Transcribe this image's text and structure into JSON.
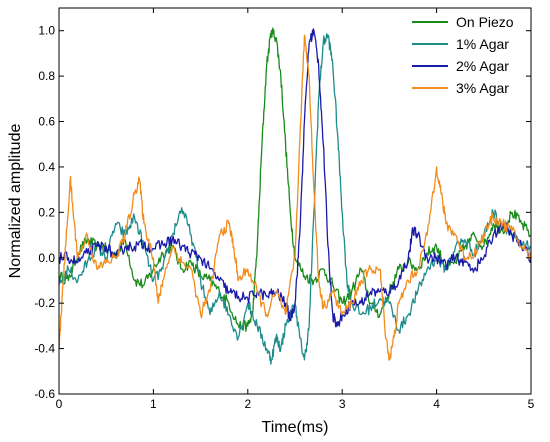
{
  "chart_data": {
    "type": "line",
    "xlabel": "Time(ms)",
    "ylabel": "Normalized amplitude",
    "xlim": [
      0,
      5
    ],
    "ylim": [
      -0.6,
      1.1
    ],
    "xticks": [
      "0",
      "1",
      "2",
      "3",
      "4",
      "5"
    ],
    "yticks": [
      "-0.6",
      "-0.4",
      "-0.2",
      "0.0",
      "0.2",
      "0.4",
      "0.6",
      "0.8",
      "1.0"
    ],
    "grid": false,
    "legend": "top-right",
    "series": [
      {
        "name": "On Piezo",
        "color": "#1a8a1a",
        "points": [
          [
            0,
            -0.08
          ],
          [
            0.1,
            -0.1
          ],
          [
            0.2,
            0.02
          ],
          [
            0.3,
            0.08
          ],
          [
            0.4,
            0.05
          ],
          [
            0.5,
            0.04
          ],
          [
            0.6,
            0.01
          ],
          [
            0.7,
            0.08
          ],
          [
            0.8,
            -0.1
          ],
          [
            0.9,
            -0.12
          ],
          [
            1.0,
            -0.05
          ],
          [
            1.1,
            0.02
          ],
          [
            1.2,
            0.05
          ],
          [
            1.3,
            -0.05
          ],
          [
            1.4,
            -0.02
          ],
          [
            1.5,
            -0.08
          ],
          [
            1.6,
            -0.1
          ],
          [
            1.7,
            -0.15
          ],
          [
            1.8,
            -0.2
          ],
          [
            1.9,
            -0.3
          ],
          [
            2.0,
            -0.3
          ],
          [
            2.05,
            -0.25
          ],
          [
            2.1,
            0.05
          ],
          [
            2.15,
            0.5
          ],
          [
            2.2,
            0.85
          ],
          [
            2.25,
            1.0
          ],
          [
            2.3,
            0.97
          ],
          [
            2.35,
            0.8
          ],
          [
            2.4,
            0.5
          ],
          [
            2.45,
            0.2
          ],
          [
            2.5,
            0.0
          ],
          [
            2.6,
            -0.08
          ],
          [
            2.7,
            -0.1
          ],
          [
            2.8,
            -0.05
          ],
          [
            2.9,
            -0.12
          ],
          [
            3.0,
            -0.2
          ],
          [
            3.1,
            -0.15
          ],
          [
            3.2,
            -0.05
          ],
          [
            3.3,
            -0.2
          ],
          [
            3.4,
            -0.25
          ],
          [
            3.5,
            -0.15
          ],
          [
            3.6,
            -0.05
          ],
          [
            3.7,
            -0.02
          ],
          [
            3.8,
            -0.05
          ],
          [
            3.9,
            0.02
          ],
          [
            4.0,
            0.05
          ],
          [
            4.1,
            -0.05
          ],
          [
            4.2,
            -0.02
          ],
          [
            4.3,
            0.05
          ],
          [
            4.4,
            0.1
          ],
          [
            4.5,
            0.05
          ],
          [
            4.6,
            0.15
          ],
          [
            4.7,
            0.12
          ],
          [
            4.8,
            0.2
          ],
          [
            4.9,
            0.15
          ],
          [
            5.0,
            0.1
          ]
        ]
      },
      {
        "name": "1% Agar",
        "color": "#1f8c8c",
        "points": [
          [
            0,
            -0.12
          ],
          [
            0.1,
            -0.05
          ],
          [
            0.2,
            -0.1
          ],
          [
            0.3,
            -0.02
          ],
          [
            0.4,
            0.05
          ],
          [
            0.5,
            0.0
          ],
          [
            0.6,
            0.15
          ],
          [
            0.7,
            0.1
          ],
          [
            0.8,
            0.18
          ],
          [
            0.9,
            0.05
          ],
          [
            1.0,
            -0.1
          ],
          [
            1.1,
            -0.05
          ],
          [
            1.2,
            0.1
          ],
          [
            1.3,
            0.22
          ],
          [
            1.4,
            0.1
          ],
          [
            1.5,
            -0.1
          ],
          [
            1.6,
            -0.25
          ],
          [
            1.7,
            -0.15
          ],
          [
            1.8,
            -0.25
          ],
          [
            1.9,
            -0.35
          ],
          [
            2.0,
            -0.2
          ],
          [
            2.1,
            -0.3
          ],
          [
            2.2,
            -0.4
          ],
          [
            2.25,
            -0.45
          ],
          [
            2.3,
            -0.35
          ],
          [
            2.35,
            -0.4
          ],
          [
            2.4,
            -0.3
          ],
          [
            2.5,
            -0.2
          ],
          [
            2.55,
            -0.35
          ],
          [
            2.6,
            -0.45
          ],
          [
            2.65,
            -0.3
          ],
          [
            2.7,
            0.2
          ],
          [
            2.75,
            0.7
          ],
          [
            2.8,
            0.95
          ],
          [
            2.85,
            0.98
          ],
          [
            2.9,
            0.85
          ],
          [
            2.95,
            0.55
          ],
          [
            3.0,
            0.2
          ],
          [
            3.05,
            -0.1
          ],
          [
            3.1,
            -0.2
          ],
          [
            3.2,
            -0.25
          ],
          [
            3.3,
            -0.22
          ],
          [
            3.4,
            -0.18
          ],
          [
            3.5,
            -0.2
          ],
          [
            3.6,
            -0.32
          ],
          [
            3.7,
            -0.25
          ],
          [
            3.8,
            -0.15
          ],
          [
            3.9,
            -0.05
          ],
          [
            4.0,
            0.0
          ],
          [
            4.1,
            -0.05
          ],
          [
            4.2,
            0.05
          ],
          [
            4.3,
            0.08
          ],
          [
            4.4,
            0.02
          ],
          [
            4.5,
            0.1
          ],
          [
            4.6,
            0.2
          ],
          [
            4.7,
            0.15
          ],
          [
            4.8,
            0.1
          ],
          [
            4.9,
            0.05
          ],
          [
            5.0,
            0.05
          ]
        ]
      },
      {
        "name": "2% Agar",
        "color": "#1a1aaa",
        "points": [
          [
            0,
            0.0
          ],
          [
            0.1,
            0.0
          ],
          [
            0.2,
            -0.02
          ],
          [
            0.3,
            0.02
          ],
          [
            0.4,
            0.05
          ],
          [
            0.5,
            0.05
          ],
          [
            0.6,
            0.0
          ],
          [
            0.7,
            0.05
          ],
          [
            0.8,
            0.05
          ],
          [
            0.9,
            0.06
          ],
          [
            1.0,
            0.04
          ],
          [
            1.1,
            0.06
          ],
          [
            1.2,
            0.08
          ],
          [
            1.3,
            0.05
          ],
          [
            1.4,
            0.02
          ],
          [
            1.5,
            0.0
          ],
          [
            1.6,
            -0.05
          ],
          [
            1.7,
            -0.1
          ],
          [
            1.8,
            -0.15
          ],
          [
            1.9,
            -0.17
          ],
          [
            2.0,
            -0.18
          ],
          [
            2.1,
            -0.15
          ],
          [
            2.2,
            -0.17
          ],
          [
            2.3,
            -0.15
          ],
          [
            2.4,
            -0.2
          ],
          [
            2.45,
            -0.27
          ],
          [
            2.5,
            -0.2
          ],
          [
            2.55,
            0.1
          ],
          [
            2.6,
            0.6
          ],
          [
            2.65,
            0.95
          ],
          [
            2.7,
            1.0
          ],
          [
            2.75,
            0.85
          ],
          [
            2.8,
            0.5
          ],
          [
            2.85,
            0.05
          ],
          [
            2.9,
            -0.25
          ],
          [
            2.95,
            -0.3
          ],
          [
            3.0,
            -0.25
          ],
          [
            3.1,
            -0.2
          ],
          [
            3.2,
            -0.2
          ],
          [
            3.3,
            -0.15
          ],
          [
            3.4,
            -0.15
          ],
          [
            3.5,
            -0.15
          ],
          [
            3.6,
            -0.1
          ],
          [
            3.7,
            0.0
          ],
          [
            3.75,
            0.12
          ],
          [
            3.8,
            0.1
          ],
          [
            3.9,
            0.0
          ],
          [
            4.0,
            0.0
          ],
          [
            4.1,
            -0.03
          ],
          [
            4.2,
            0.0
          ],
          [
            4.3,
            -0.02
          ],
          [
            4.4,
            -0.05
          ],
          [
            4.5,
            0.0
          ],
          [
            4.6,
            0.1
          ],
          [
            4.7,
            0.15
          ],
          [
            4.8,
            0.1
          ],
          [
            4.9,
            0.05
          ],
          [
            5.0,
            0.0
          ]
        ]
      },
      {
        "name": "3% Agar",
        "color": "#f28c1c",
        "points": [
          [
            0,
            -0.4
          ],
          [
            0.03,
            -0.2
          ],
          [
            0.07,
            0.05
          ],
          [
            0.12,
            0.35
          ],
          [
            0.15,
            0.2
          ],
          [
            0.2,
            0.0
          ],
          [
            0.3,
            0.1
          ],
          [
            0.4,
            -0.05
          ],
          [
            0.5,
            -0.02
          ],
          [
            0.6,
            0.0
          ],
          [
            0.7,
            0.1
          ],
          [
            0.8,
            0.28
          ],
          [
            0.85,
            0.35
          ],
          [
            0.9,
            0.15
          ],
          [
            1.0,
            0.0
          ],
          [
            1.05,
            -0.2
          ],
          [
            1.1,
            -0.1
          ],
          [
            1.2,
            0.05
          ],
          [
            1.3,
            -0.02
          ],
          [
            1.4,
            -0.05
          ],
          [
            1.5,
            -0.25
          ],
          [
            1.6,
            -0.15
          ],
          [
            1.7,
            0.1
          ],
          [
            1.8,
            0.15
          ],
          [
            1.85,
            0.05
          ],
          [
            1.9,
            -0.1
          ],
          [
            2.0,
            -0.05
          ],
          [
            2.1,
            -0.15
          ],
          [
            2.2,
            -0.25
          ],
          [
            2.3,
            -0.15
          ],
          [
            2.4,
            -0.25
          ],
          [
            2.5,
            0.0
          ],
          [
            2.55,
            0.5
          ],
          [
            2.6,
            0.98
          ],
          [
            2.65,
            0.8
          ],
          [
            2.7,
            0.3
          ],
          [
            2.75,
            -0.1
          ],
          [
            2.8,
            -0.22
          ],
          [
            2.9,
            -0.15
          ],
          [
            3.0,
            -0.25
          ],
          [
            3.1,
            -0.2
          ],
          [
            3.2,
            -0.1
          ],
          [
            3.3,
            -0.05
          ],
          [
            3.4,
            -0.05
          ],
          [
            3.45,
            -0.3
          ],
          [
            3.5,
            -0.45
          ],
          [
            3.55,
            -0.35
          ],
          [
            3.6,
            -0.2
          ],
          [
            3.7,
            -0.1
          ],
          [
            3.8,
            -0.05
          ],
          [
            3.9,
            0.1
          ],
          [
            4.0,
            0.4
          ],
          [
            4.05,
            0.28
          ],
          [
            4.1,
            0.15
          ],
          [
            4.2,
            0.1
          ],
          [
            4.3,
            0.0
          ],
          [
            4.4,
            0.02
          ],
          [
            4.5,
            0.1
          ],
          [
            4.6,
            0.18
          ],
          [
            4.7,
            0.15
          ],
          [
            4.8,
            0.12
          ],
          [
            4.9,
            0.05
          ],
          [
            5.0,
            0.0
          ]
        ]
      }
    ]
  }
}
